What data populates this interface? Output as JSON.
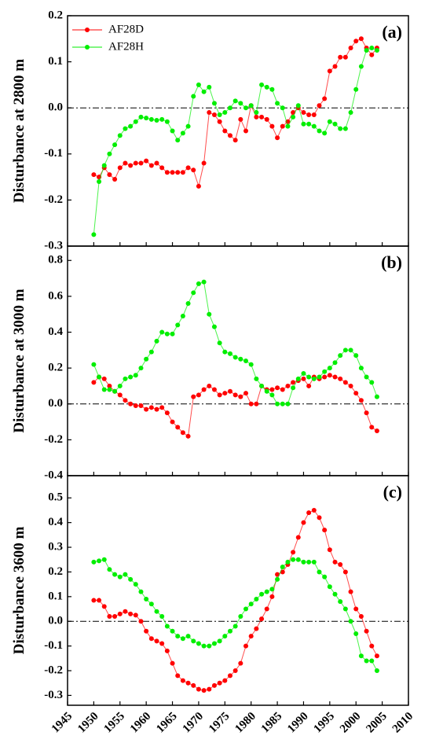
{
  "chart_data": [
    {
      "type": "line",
      "panel_label": "(a)",
      "y_label": "Disturbance at 2800 m",
      "x": [
        1950,
        1951,
        1952,
        1953,
        1954,
        1955,
        1956,
        1957,
        1958,
        1959,
        1960,
        1961,
        1962,
        1963,
        1964,
        1965,
        1966,
        1967,
        1968,
        1969,
        1970,
        1971,
        1972,
        1973,
        1974,
        1975,
        1976,
        1977,
        1978,
        1979,
        1980,
        1981,
        1982,
        1983,
        1984,
        1985,
        1986,
        1987,
        1988,
        1989,
        1990,
        1991,
        1992,
        1993,
        1994,
        1995,
        1996,
        1997,
        1998,
        1999,
        2000,
        2001,
        2002,
        2003,
        2004
      ],
      "series": [
        {
          "name": "AF28D",
          "color": "#ff0000",
          "values": [
            -0.145,
            -0.15,
            -0.13,
            -0.145,
            -0.155,
            -0.13,
            -0.12,
            -0.125,
            -0.12,
            -0.12,
            -0.115,
            -0.125,
            -0.12,
            -0.13,
            -0.14,
            -0.14,
            -0.14,
            -0.14,
            -0.13,
            -0.135,
            -0.17,
            -0.12,
            -0.01,
            -0.015,
            -0.03,
            -0.05,
            -0.06,
            -0.07,
            -0.025,
            -0.05,
            0.005,
            -0.02,
            -0.02,
            -0.025,
            -0.04,
            -0.065,
            -0.04,
            -0.03,
            -0.01,
            0.0,
            -0.01,
            -0.015,
            -0.015,
            0.005,
            0.02,
            0.08,
            0.09,
            0.11,
            0.11,
            0.13,
            0.145,
            0.15,
            0.13,
            0.115,
            0.13
          ]
        },
        {
          "name": "AF28H",
          "color": "#00ee00",
          "values": [
            -0.275,
            -0.16,
            -0.125,
            -0.1,
            -0.08,
            -0.06,
            -0.045,
            -0.04,
            -0.03,
            -0.02,
            -0.022,
            -0.025,
            -0.027,
            -0.025,
            -0.03,
            -0.05,
            -0.07,
            -0.055,
            -0.04,
            0.025,
            0.05,
            0.035,
            0.045,
            0.01,
            -0.015,
            -0.01,
            0.0,
            0.015,
            0.01,
            0.0,
            0.005,
            -0.01,
            0.05,
            0.045,
            0.04,
            0.01,
            0.0,
            -0.04,
            -0.02,
            0.005,
            -0.035,
            -0.035,
            -0.04,
            -0.05,
            -0.055,
            -0.03,
            -0.035,
            -0.045,
            -0.045,
            -0.01,
            0.04,
            0.09,
            0.125,
            0.13,
            0.125
          ]
        }
      ],
      "xlim": [
        1945,
        2010
      ],
      "ylim": [
        -0.3,
        0.2
      ],
      "yticks": [
        0.2,
        0.1,
        {
          "value": 0,
          "label": "0.0"
        },
        -0.1,
        -0.2,
        -0.3
      ],
      "hline": 0
    },
    {
      "type": "line",
      "panel_label": "(b)",
      "y_label": "Disturbance at 3000 m",
      "x": [
        1950,
        1951,
        1952,
        1953,
        1954,
        1955,
        1956,
        1957,
        1958,
        1959,
        1960,
        1961,
        1962,
        1963,
        1964,
        1965,
        1966,
        1967,
        1968,
        1969,
        1970,
        1971,
        1972,
        1973,
        1974,
        1975,
        1976,
        1977,
        1978,
        1979,
        1980,
        1981,
        1982,
        1983,
        1984,
        1985,
        1986,
        1987,
        1988,
        1989,
        1990,
        1991,
        1992,
        1993,
        1994,
        1995,
        1996,
        1997,
        1998,
        1999,
        2000,
        2001,
        2002,
        2003,
        2004
      ],
      "series": [
        {
          "color": "#ff0000",
          "values": [
            0.12,
            0.15,
            0.14,
            0.1,
            0.07,
            0.05,
            0.02,
            0.0,
            -0.01,
            -0.01,
            -0.03,
            -0.02,
            -0.03,
            -0.02,
            -0.05,
            -0.1,
            -0.13,
            -0.16,
            -0.18,
            0.04,
            0.05,
            0.08,
            0.1,
            0.08,
            0.05,
            0.06,
            0.07,
            0.05,
            0.04,
            0.06,
            0.0,
            0.0,
            0.1,
            0.08,
            0.08,
            0.09,
            0.08,
            0.1,
            0.12,
            0.13,
            0.14,
            0.1,
            0.15,
            0.14,
            0.15,
            0.16,
            0.15,
            0.14,
            0.12,
            0.1,
            0.06,
            0.02,
            -0.05,
            -0.13,
            -0.15
          ]
        },
        {
          "color": "#00ee00",
          "values": [
            0.22,
            0.15,
            0.08,
            0.08,
            0.07,
            0.1,
            0.14,
            0.15,
            0.16,
            0.2,
            0.25,
            0.29,
            0.35,
            0.4,
            0.39,
            0.39,
            0.44,
            0.49,
            0.56,
            0.62,
            0.67,
            0.68,
            0.5,
            0.43,
            0.34,
            0.29,
            0.28,
            0.26,
            0.25,
            0.24,
            0.22,
            0.14,
            0.1,
            0.07,
            0.05,
            0.0,
            0.0,
            0.0,
            0.09,
            0.14,
            0.17,
            0.15,
            0.14,
            0.15,
            0.18,
            0.2,
            0.23,
            0.27,
            0.3,
            0.3,
            0.27,
            0.2,
            0.15,
            0.12,
            0.04
          ]
        }
      ],
      "xlim": [
        1945,
        2010
      ],
      "ylim": [
        -0.4,
        0.88
      ],
      "yticks": [
        0.8,
        0.6,
        0.4,
        0.2,
        {
          "value": 0,
          "label": "0.0"
        },
        -0.2,
        -0.4
      ],
      "hline": 0
    },
    {
      "type": "line",
      "panel_label": "(c)",
      "y_label": "Disturbance 3600 m",
      "x": [
        1950,
        1951,
        1952,
        1953,
        1954,
        1955,
        1956,
        1957,
        1958,
        1959,
        1960,
        1961,
        1962,
        1963,
        1964,
        1965,
        1966,
        1967,
        1968,
        1969,
        1970,
        1971,
        1972,
        1973,
        1974,
        1975,
        1976,
        1977,
        1978,
        1979,
        1980,
        1981,
        1982,
        1983,
        1984,
        1985,
        1986,
        1987,
        1988,
        1989,
        1990,
        1991,
        1992,
        1993,
        1994,
        1995,
        1996,
        1997,
        1998,
        1999,
        2000,
        2001,
        2002,
        2003,
        2004
      ],
      "series": [
        {
          "color": "#ff0000",
          "values": [
            0.085,
            0.085,
            0.06,
            0.02,
            0.02,
            0.03,
            0.04,
            0.03,
            0.025,
            0.0,
            -0.04,
            -0.07,
            -0.08,
            -0.09,
            -0.12,
            -0.17,
            -0.22,
            -0.24,
            -0.25,
            -0.26,
            -0.275,
            -0.28,
            -0.275,
            -0.26,
            -0.25,
            -0.24,
            -0.22,
            -0.2,
            -0.17,
            -0.1,
            -0.06,
            -0.03,
            0.01,
            0.05,
            0.1,
            0.19,
            0.2,
            0.23,
            0.28,
            0.34,
            0.4,
            0.44,
            0.45,
            0.42,
            0.37,
            0.29,
            0.24,
            0.23,
            0.2,
            0.12,
            0.05,
            0.02,
            -0.04,
            -0.1,
            -0.14
          ]
        },
        {
          "color": "#00ee00",
          "values": [
            0.24,
            0.245,
            0.25,
            0.21,
            0.19,
            0.18,
            0.19,
            0.17,
            0.15,
            0.12,
            0.09,
            0.07,
            0.04,
            0.02,
            -0.02,
            -0.04,
            -0.06,
            -0.07,
            -0.06,
            -0.08,
            -0.09,
            -0.1,
            -0.1,
            -0.09,
            -0.08,
            -0.06,
            -0.04,
            -0.02,
            0.02,
            0.05,
            0.07,
            0.09,
            0.11,
            0.12,
            0.13,
            0.17,
            0.22,
            0.24,
            0.25,
            0.25,
            0.24,
            0.24,
            0.24,
            0.2,
            0.18,
            0.14,
            0.11,
            0.08,
            0.05,
            0.0,
            -0.05,
            -0.14,
            -0.16,
            -0.16,
            -0.2
          ]
        }
      ],
      "xlim": [
        1945,
        2010
      ],
      "ylim": [
        -0.34,
        0.59
      ],
      "xticks": [
        1945,
        1950,
        1955,
        1960,
        1965,
        1970,
        1975,
        1980,
        1985,
        1990,
        1995,
        2000,
        2005,
        2010
      ],
      "yticks": [
        0.5,
        0.4,
        0.3,
        0.2,
        0.1,
        {
          "value": 0,
          "label": "0.0"
        },
        -0.1,
        -0.2,
        -0.3
      ],
      "hline": 0
    }
  ]
}
